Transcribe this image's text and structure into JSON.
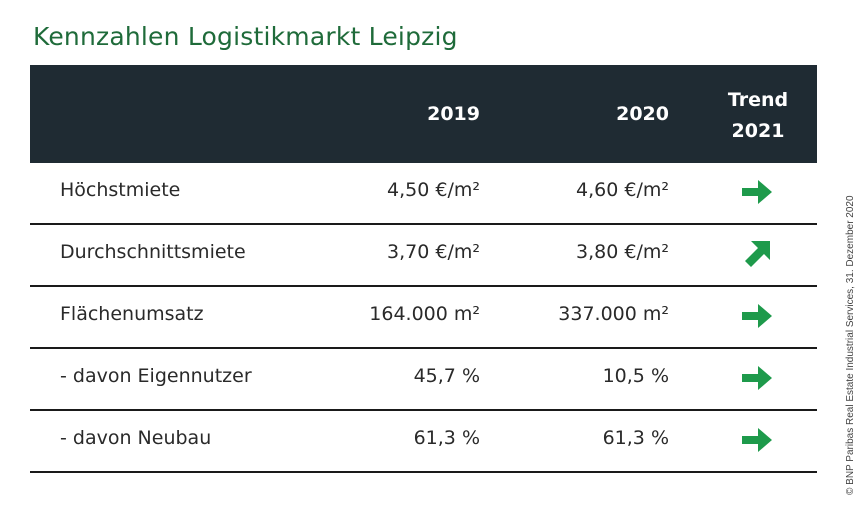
{
  "title": "Kennzahlen Logistikmarkt Leipzig",
  "header": {
    "col_2019": "2019",
    "col_2020": "2020",
    "trend_line1": "Trend",
    "trend_line2": "2021"
  },
  "rows": [
    {
      "label": "Höchstmiete",
      "v2019": "4,50 €/m²",
      "v2020": "4,60 €/m²",
      "trend": "arrow-right-icon"
    },
    {
      "label": "Durchschnittsmiete",
      "v2019": "3,70 €/m²",
      "v2020": "3,80 €/m²",
      "trend": "arrow-up-right-icon"
    },
    {
      "label": "Flächenumsatz",
      "v2019": "164.000 m²",
      "v2020": "337.000 m²",
      "trend": "arrow-right-icon"
    },
    {
      "label": "- davon Eigennutzer",
      "v2019": "45,7 %",
      "v2020": "10,5 %",
      "trend": "arrow-right-icon"
    },
    {
      "label": "- davon Neubau",
      "v2019": "61,3 %",
      "v2020": "61,3 %",
      "trend": "arrow-right-icon"
    }
  ],
  "copyright": "© BNP Paribas Real Estate Industrial Services, 31. Dezember 2020",
  "colors": {
    "title_green": "#1f6b3a",
    "arrow_green": "#1e9a4b",
    "header_bg": "#1f2b33"
  }
}
